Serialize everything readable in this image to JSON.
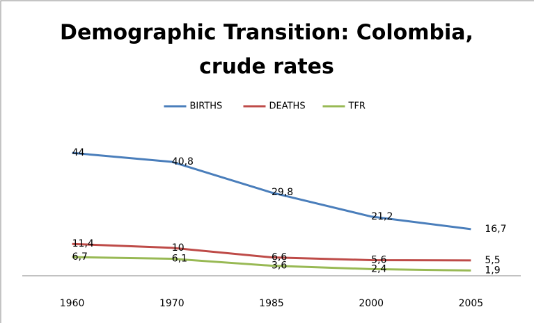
{
  "chart_data": {
    "type": "line",
    "title": [
      "Demographic Transition: Colombia,",
      "crude rates"
    ],
    "categories": [
      "1960",
      "1970",
      "1985",
      "2000",
      "2005"
    ],
    "series": [
      {
        "name": "BIRTHS",
        "color": "#4a7ebb",
        "values": [
          44,
          40.8,
          29.8,
          21.2,
          16.7
        ],
        "value_labels": [
          "44",
          "40,8",
          "29,8",
          "21,2",
          "16,7"
        ]
      },
      {
        "name": "DEATHS",
        "color": "#be4b48",
        "values": [
          11.4,
          10,
          6.6,
          5.6,
          5.5
        ],
        "value_labels": [
          "11,4",
          "10",
          "6,6",
          "5,6",
          "5,5"
        ]
      },
      {
        "name": "TFR",
        "color": "#98b954",
        "values": [
          6.7,
          6.1,
          3.6,
          2.4,
          1.9
        ],
        "value_labels": [
          "6,7",
          "6,1",
          "3,6",
          "2,4",
          "1,9"
        ]
      }
    ],
    "ylim": [
      0,
      50
    ],
    "legend": "top"
  }
}
